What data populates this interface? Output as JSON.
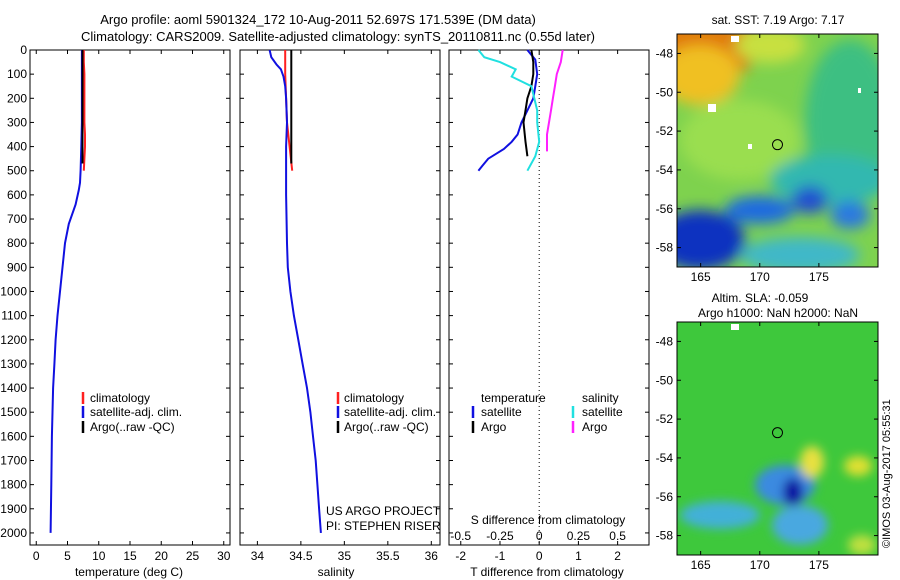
{
  "title": {
    "line1": "Argo profile: aoml 5901324_172 10-Aug-2011 52.697S 171.539E (DM data)",
    "line2": "Climatology: CARS2009. Satellite-adjusted climatology: synTS_20110811.nc (0.55d later)"
  },
  "credit": {
    "project": "US ARGO PROJECT",
    "pi": "PI: STEPHEN RISER",
    "imos": "©IMOS 03-Aug-2017 05:55:31"
  },
  "colors": {
    "climatology": "#ff2020",
    "satellite": "#1010e0",
    "argo": "#000000",
    "satellite_salinity": "#20e0e0",
    "argo_salinity": "#ff20ff"
  },
  "chart_data": [
    {
      "type": "line",
      "panel": "temperature",
      "xlabel": "temperature (deg C)",
      "ylabel": "",
      "xlim": [
        -1,
        31
      ],
      "ylim": [
        2050,
        0
      ],
      "xticks": [
        0,
        5,
        10,
        15,
        20,
        25,
        30
      ],
      "xtick_labels": [
        "0",
        "5",
        "10",
        "15",
        "20",
        "25",
        "30"
      ],
      "yticks": [
        0,
        100,
        200,
        300,
        400,
        500,
        600,
        700,
        800,
        900,
        1000,
        1100,
        1200,
        1300,
        1400,
        1500,
        1600,
        1700,
        1800,
        1900,
        2000
      ],
      "ytick_labels": [
        "0",
        "100",
        "200",
        "300",
        "400",
        "500",
        "600",
        "700",
        "800",
        "900",
        "1000",
        "1100",
        "1200",
        "1300",
        "1400",
        "1500",
        "1600",
        "1700",
        "1800",
        "1900",
        "2000"
      ],
      "legend": [
        "climatology",
        "satellite-adj. clim.",
        "Argo(..raw -QC)"
      ],
      "legend_position": "lower-center",
      "series": [
        {
          "name": "climatology",
          "color": "#ff2020",
          "x": [
            7.6,
            7.6,
            7.7,
            7.7,
            7.7,
            7.8,
            7.8,
            7.6
          ],
          "y": [
            0,
            50,
            100,
            200,
            300,
            350,
            400,
            500
          ]
        },
        {
          "name": "satellite-adj. clim.",
          "color": "#1010e0",
          "x": [
            7.3,
            7.3,
            7.3,
            7.3,
            7.2,
            7.1,
            7.0,
            6.8,
            6.3,
            5.2,
            4.6,
            4.2,
            3.8,
            3.4,
            3.1,
            2.9,
            2.7,
            2.6,
            2.5,
            2.4,
            2.3
          ],
          "y": [
            0,
            100,
            200,
            300,
            400,
            500,
            550,
            580,
            640,
            720,
            800,
            900,
            1000,
            1100,
            1200,
            1300,
            1400,
            1500,
            1600,
            1800,
            2000
          ]
        },
        {
          "name": "Argo(..raw -QC)",
          "color": "#000000",
          "x": [
            7.4,
            7.4,
            7.4,
            7.4,
            7.4,
            7.4
          ],
          "y": [
            0,
            100,
            200,
            300,
            400,
            470
          ]
        }
      ]
    },
    {
      "type": "line",
      "panel": "salinity",
      "xlabel": "salinity",
      "ylabel": "",
      "xlim": [
        33.8,
        36.1
      ],
      "ylim": [
        2050,
        0
      ],
      "xticks": [
        34,
        34.5,
        35,
        35.5,
        36
      ],
      "xtick_labels": [
        "34",
        "34.5",
        "35",
        "35.5",
        "36"
      ],
      "legend": [
        "climatology",
        "satellite-adj. clim.",
        "Argo(..raw -QC)"
      ],
      "legend_position": "lower-center",
      "series": [
        {
          "name": "climatology",
          "color": "#ff2020",
          "x": [
            34.32,
            34.32,
            34.33,
            34.34,
            34.37,
            34.4
          ],
          "y": [
            0,
            100,
            200,
            300,
            400,
            500
          ]
        },
        {
          "name": "satellite-adj. clim.",
          "color": "#1010e0",
          "x": [
            34.14,
            34.16,
            34.22,
            34.27,
            34.3,
            34.32,
            34.33,
            34.34,
            34.33,
            34.33,
            34.34,
            34.35,
            34.38,
            34.42,
            34.47,
            34.52,
            34.57,
            34.61,
            34.64,
            34.67,
            34.69,
            34.71,
            34.72,
            34.73
          ],
          "y": [
            0,
            30,
            60,
            80,
            110,
            150,
            200,
            300,
            400,
            600,
            800,
            900,
            1000,
            1100,
            1200,
            1300,
            1400,
            1500,
            1600,
            1700,
            1800,
            1900,
            1950,
            2000
          ]
        },
        {
          "name": "Argo(..raw -QC)",
          "color": "#000000",
          "x": [
            34.39,
            34.39,
            34.39,
            34.39,
            34.39,
            34.39
          ],
          "y": [
            0,
            100,
            200,
            300,
            400,
            470
          ]
        }
      ],
      "annotations": [
        "US ARGO PROJECT",
        "PI: STEPHEN RISER"
      ]
    },
    {
      "type": "line",
      "panel": "difference",
      "xlabel": "T difference from climatology",
      "xlabel_top": "S difference from climatology",
      "xlim": [
        -2.3,
        2.8
      ],
      "ylim": [
        2050,
        0
      ],
      "xticks": [
        -2,
        -1,
        0,
        1,
        2
      ],
      "xtick_labels": [
        "-2",
        "-1",
        "0",
        "1",
        "2"
      ],
      "s_xtick_labels": [
        "-0.5",
        "-0.25",
        "0",
        "0.25",
        "0.5"
      ],
      "legend_headings": [
        "temperature",
        "salinity"
      ],
      "legend": [
        "satellite",
        "Argo",
        "satellite",
        "Argo"
      ],
      "legend_position": "lower-center",
      "series": [
        {
          "name": "satellite",
          "color": "#1010e0",
          "x": [
            -0.3,
            -0.1,
            -0.05,
            -0.1,
            -0.15,
            -0.3,
            -0.45,
            -0.55,
            -0.7,
            -0.9,
            -1.1,
            -1.3,
            -1.45,
            -1.55
          ],
          "y": [
            0,
            40,
            100,
            150,
            200,
            250,
            300,
            350,
            380,
            410,
            430,
            450,
            480,
            500
          ]
        },
        {
          "name": "Argo",
          "color": "#000000",
          "x": [
            -0.2,
            -0.15,
            -0.15,
            -0.2,
            -0.3,
            -0.35,
            -0.4,
            -0.35,
            -0.3
          ],
          "y": [
            0,
            50,
            100,
            150,
            200,
            250,
            300,
            380,
            440
          ]
        },
        {
          "name": "satellite",
          "color": "#20e0e0",
          "x": [
            -1.55,
            -1.4,
            -1.0,
            -0.6,
            -0.7,
            -0.2,
            -0.05,
            -0.05,
            0.0,
            -0.1,
            -0.3
          ],
          "y": [
            0,
            30,
            50,
            80,
            110,
            150,
            250,
            300,
            380,
            440,
            500
          ]
        },
        {
          "name": "Argo",
          "color": "#ff20ff",
          "x": [
            0.6,
            0.55,
            0.45,
            0.4,
            0.35,
            0.3,
            0.25,
            0.2,
            0.2
          ],
          "y": [
            0,
            50,
            100,
            150,
            200,
            250,
            300,
            350,
            420
          ]
        }
      ]
    },
    {
      "type": "heatmap",
      "panel": "sst-map",
      "title": "sat. SST: 7.19  Argo: 7.17",
      "xlim": [
        163,
        180
      ],
      "ylim": [
        -59,
        -47
      ],
      "xticks": [
        165,
        170,
        175
      ],
      "xtick_labels": [
        "165",
        "170",
        "175"
      ],
      "yticks": [
        -48,
        -50,
        -52,
        -54,
        -56,
        -58
      ],
      "ytick_labels": [
        "-48",
        "-50",
        "-52",
        "-54",
        "-56",
        "-58"
      ],
      "marker": {
        "lon": 171.5,
        "lat": -52.7
      }
    },
    {
      "type": "heatmap",
      "panel": "sla-map",
      "title_line1": "Altim. SLA: -0.059",
      "title_line2": "Argo h1000: NaN h2000: NaN",
      "xlim": [
        163,
        180
      ],
      "ylim": [
        -59,
        -47
      ],
      "xticks": [
        165,
        170,
        175
      ],
      "xtick_labels": [
        "165",
        "170",
        "175"
      ],
      "yticks": [
        -48,
        -50,
        -52,
        -54,
        -56,
        -58
      ],
      "ytick_labels": [
        "-48",
        "-50",
        "-52",
        "-54",
        "-56",
        "-58"
      ],
      "marker": {
        "lon": 171.5,
        "lat": -52.7
      }
    }
  ]
}
